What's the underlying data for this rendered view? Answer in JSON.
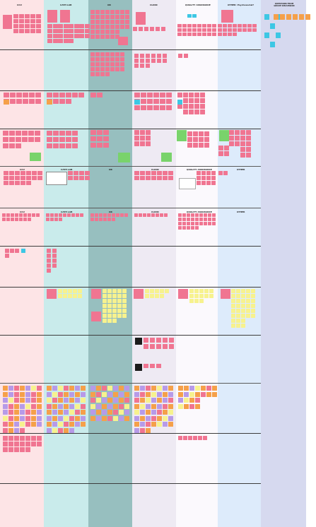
{
  "board": {
    "column_headers": [
      {
        "key": "ccu",
        "label": "CCU"
      },
      {
        "key": "cath_lab",
        "label": "CATH LAB"
      },
      {
        "key": "or",
        "label": "OR"
      },
      {
        "key": "clinic",
        "label": "CLINIC"
      },
      {
        "key": "quality_assurance",
        "label": "QUALITY ASSURANCE"
      },
      {
        "key": "other",
        "label": "OTHER: Psychosocial?"
      },
      {
        "key": "questions",
        "label": "QUESTIONS FROM GROUP DISCUSSION"
      }
    ],
    "section_two_headers": [
      "CCU",
      "CATH LAB",
      "OR",
      "CLINIC",
      "QUALITY ASSURANCE",
      "OTHER"
    ],
    "section_three_headers": [
      "CCU",
      "CATH LAB",
      "OR",
      "CLINIC",
      "QUALITY ASSURANCE",
      "OTHER"
    ]
  },
  "colors": {
    "ccu_bg": "#fde4e6",
    "cath_bg": "#c9ebeb",
    "or_bg": "#97bfbf",
    "clinic_bg": "#eeeaf3",
    "qa_bg": "#fbf9fd",
    "other_bg": "#ddebfb",
    "questions_bg": "#d6d9ef",
    "note_pink": "#f07591",
    "note_yellow": "#f7f28e",
    "note_orange": "#f5a04a",
    "note_purple": "#b79ae8",
    "note_cyan": "#3dc7e4",
    "note_green": "#79d36b",
    "note_black": "#1b1b1b"
  }
}
